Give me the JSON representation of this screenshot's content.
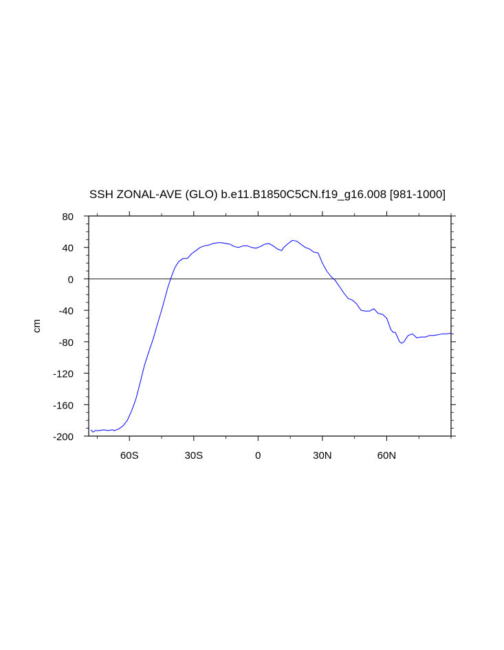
{
  "chart_data": {
    "type": "line",
    "title": "SSH ZONAL-AVE (GLO) b.e11.B1850C5CN.f19_g16.008 [981-1000]",
    "xlabel": "",
    "ylabel": "cm",
    "xlim": [
      -79,
      90
    ],
    "ylim": [
      -200,
      80
    ],
    "x_ticks": [
      -60,
      -30,
      0,
      30,
      60
    ],
    "x_tick_labels": [
      "60S",
      "30S",
      "0",
      "30N",
      "60N"
    ],
    "y_ticks": [
      80,
      40,
      0,
      -40,
      -80,
      -120,
      -160,
      -200
    ],
    "y_tick_labels": [
      "80",
      "40",
      "0",
      "-40",
      "-80",
      "-120",
      "-160",
      "-200"
    ],
    "reference_line": 0,
    "grid": false,
    "line_color": "#0000ff",
    "series": [
      {
        "x": [
          -78,
          -77,
          -76,
          -74,
          -72,
          -70,
          -68,
          -67,
          -65,
          -63,
          -61,
          -59,
          -57,
          -55,
          -53,
          -51,
          -49,
          -47,
          -45,
          -44,
          -43,
          -42,
          -41,
          -40,
          -39,
          -38,
          -37,
          -35,
          -33,
          -31,
          -29,
          -27,
          -25,
          -23,
          -21,
          -19,
          -17,
          -15,
          -13,
          -11,
          -9,
          -7,
          -5,
          -3,
          -1,
          1,
          3,
          5,
          7,
          9,
          11,
          12,
          14,
          16,
          18,
          20,
          22,
          24,
          26,
          28,
          30,
          32,
          34,
          36,
          37,
          38,
          40,
          42,
          44,
          46,
          48,
          50,
          52,
          54,
          56,
          58,
          60,
          62,
          63,
          64,
          66,
          67,
          68,
          70,
          72,
          74,
          76,
          78,
          80,
          82,
          84,
          86,
          88,
          90
        ],
        "y": [
          -192,
          -195,
          -193,
          -193,
          -192,
          -193,
          -192,
          -193,
          -191,
          -187,
          -180,
          -168,
          -153,
          -132,
          -110,
          -93,
          -77,
          -58,
          -40,
          -30,
          -20,
          -10,
          -2,
          6,
          13,
          18,
          22,
          26,
          26,
          32,
          36,
          40,
          42,
          43,
          45,
          46,
          46,
          45,
          44,
          41,
          40,
          42,
          42,
          40,
          39,
          41,
          44,
          45,
          42,
          38,
          36,
          40,
          45,
          49,
          48,
          44,
          40,
          38,
          34,
          33,
          20,
          10,
          3,
          -2,
          -6,
          -10,
          -18,
          -25,
          -27,
          -32,
          -40,
          -41,
          -41,
          -38,
          -44,
          -45,
          -50,
          -65,
          -68,
          -68,
          -80,
          -82,
          -80,
          -72,
          -70,
          -75,
          -74,
          -74,
          -72,
          -72,
          -71,
          -70,
          -70,
          -69
        ]
      }
    ]
  }
}
